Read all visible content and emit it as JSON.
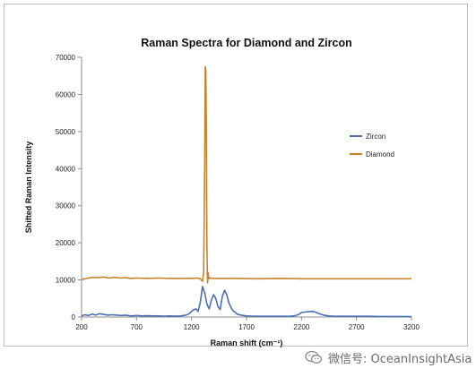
{
  "chart_data": {
    "type": "line",
    "title": "Raman Spectra for Diamond and Zircon",
    "xlabel": "Raman shift (cm⁻¹)",
    "ylabel": "Shifted Raman Intensity",
    "xlim": [
      200,
      3200
    ],
    "ylim": [
      0,
      70000
    ],
    "xticks": [
      200,
      700,
      1200,
      1700,
      2200,
      2700,
      3200
    ],
    "yticks": [
      0,
      10000,
      20000,
      30000,
      40000,
      50000,
      60000,
      70000
    ],
    "grid": false,
    "legend_position": "right",
    "series": [
      {
        "name": "Zircon",
        "color": "#4a6fb3",
        "x": [
          200,
          230,
          260,
          300,
          330,
          360,
          400,
          440,
          480,
          520,
          560,
          600,
          650,
          700,
          750,
          800,
          850,
          900,
          950,
          1000,
          1050,
          1100,
          1150,
          1180,
          1210,
          1240,
          1260,
          1280,
          1300,
          1320,
          1340,
          1360,
          1380,
          1400,
          1420,
          1440,
          1460,
          1480,
          1500,
          1520,
          1540,
          1560,
          1580,
          1600,
          1620,
          1650,
          1700,
          1750,
          1800,
          1900,
          2000,
          2100,
          2150,
          2180,
          2200,
          2250,
          2300,
          2330,
          2360,
          2400,
          2450,
          2500,
          2600,
          2700,
          2800,
          2900,
          3000,
          3100,
          3200
        ],
        "y": [
          300,
          600,
          400,
          800,
          500,
          900,
          700,
          500,
          600,
          500,
          400,
          500,
          300,
          400,
          300,
          350,
          300,
          300,
          250,
          300,
          250,
          300,
          500,
          900,
          1800,
          2200,
          1500,
          4000,
          8200,
          6500,
          3500,
          2200,
          4500,
          6000,
          5000,
          2800,
          2000,
          5500,
          7200,
          6000,
          3800,
          2500,
          1600,
          1200,
          700,
          500,
          300,
          250,
          200,
          200,
          200,
          200,
          400,
          800,
          1200,
          1400,
          1500,
          1300,
          900,
          500,
          300,
          200,
          200,
          200,
          200,
          150,
          150,
          150,
          100
        ]
      },
      {
        "name": "Diamond",
        "color": "#c8822c",
        "x": [
          200,
          250,
          300,
          350,
          400,
          450,
          500,
          550,
          600,
          650,
          700,
          800,
          900,
          1000,
          1100,
          1200,
          1250,
          1280,
          1300,
          1310,
          1320,
          1325,
          1330,
          1335,
          1340,
          1345,
          1350,
          1355,
          1360,
          1370,
          1380,
          1400,
          1500,
          1600,
          1800,
          2000,
          2200,
          2400,
          2600,
          2800,
          3000,
          3200
        ],
        "y": [
          10100,
          10400,
          10700,
          10600,
          10800,
          10500,
          10700,
          10500,
          10600,
          10400,
          10500,
          10400,
          10500,
          10400,
          10400,
          10400,
          10500,
          10300,
          9600,
          12000,
          42000,
          67500,
          66500,
          50000,
          20000,
          9200,
          12000,
          10200,
          10700,
          10400,
          10500,
          10400,
          10400,
          10400,
          10300,
          10400,
          10300,
          10300,
          10300,
          10300,
          10300,
          10300
        ]
      }
    ]
  },
  "watermark": {
    "text": "微信号: OceanInsightAsia",
    "icon": "wechat-icon"
  }
}
